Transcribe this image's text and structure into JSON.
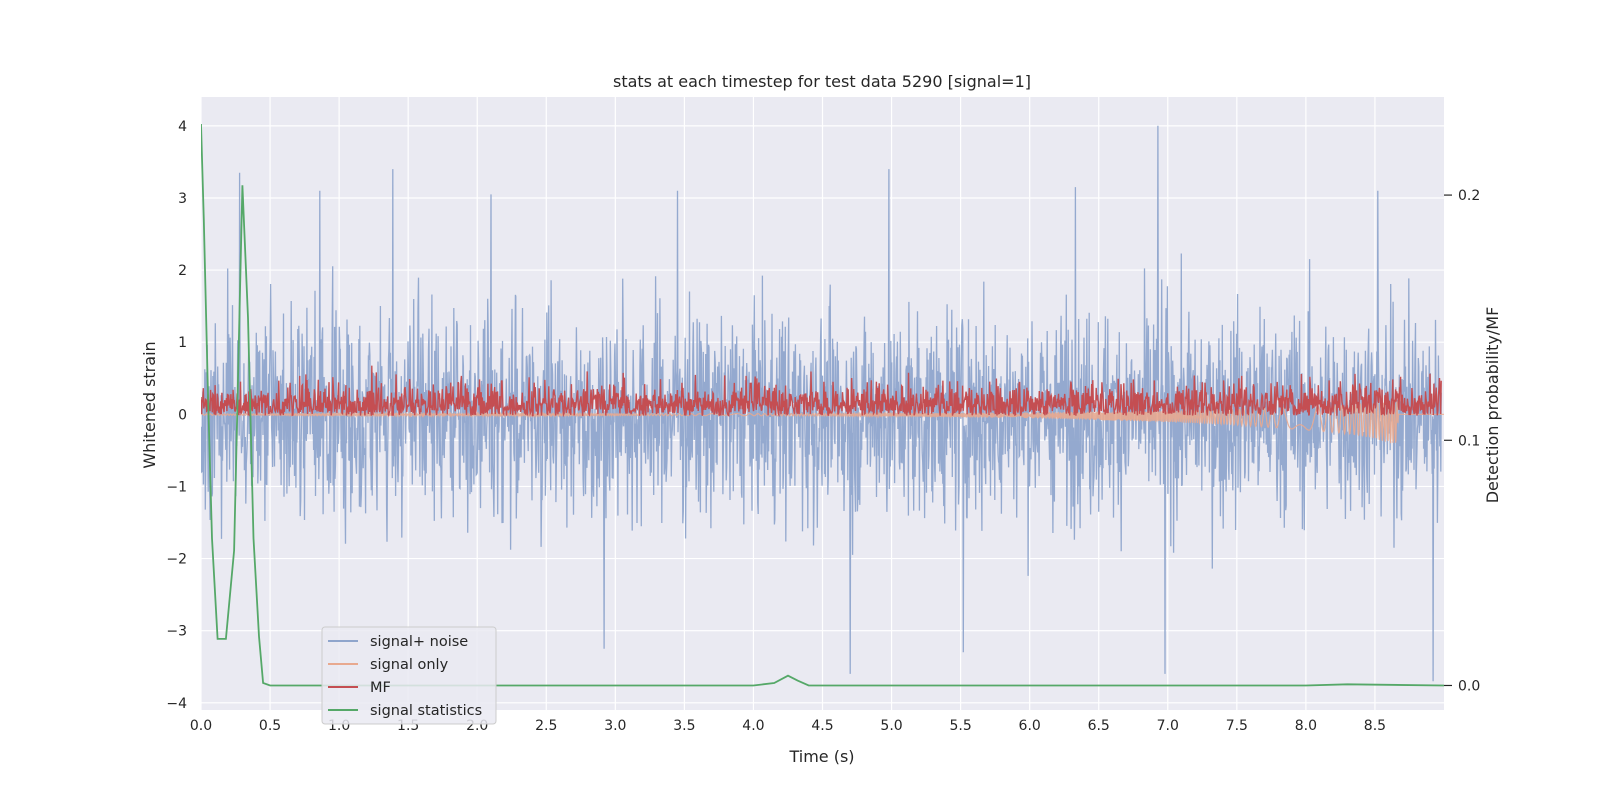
{
  "chart_data": {
    "type": "line",
    "title": "stats at each timestep for test data 5290 [signal=1]",
    "xlabel": "Time (s)",
    "ylabel": "Whitened strain",
    "y2label": "Detection probability/MF",
    "xlim": [
      0.0,
      9.0
    ],
    "ylim": [
      -4.1,
      4.4
    ],
    "y2lim": [
      -0.01,
      0.24
    ],
    "x_ticks": [
      0.0,
      0.5,
      1.0,
      1.5,
      2.0,
      2.5,
      3.0,
      3.5,
      4.0,
      4.5,
      5.0,
      5.5,
      6.0,
      6.5,
      7.0,
      7.5,
      8.0,
      8.5
    ],
    "x_tick_labels": [
      "0.0",
      "0.5",
      "1.0",
      "1.5",
      "2.0",
      "2.5",
      "3.0",
      "3.5",
      "4.0",
      "4.5",
      "5.0",
      "5.5",
      "6.0",
      "6.5",
      "7.0",
      "7.5",
      "8.0",
      "8.5"
    ],
    "y_ticks": [
      4,
      3,
      2,
      1,
      0,
      -1,
      -2,
      -3,
      -4
    ],
    "y_tick_labels": [
      "4",
      "3",
      "2",
      "1",
      "0",
      "−1",
      "−2",
      "−3",
      "−4"
    ],
    "y2_ticks": [
      0.2,
      0.1,
      0.0
    ],
    "y2_tick_labels": [
      "0.2",
      "0.1",
      "0.0"
    ],
    "grid": true,
    "legend_position": "bottom-left",
    "legend": [
      {
        "name": "signal+ noise",
        "color": "#8fa5cc"
      },
      {
        "name": "signal only",
        "color": "#e8a98f"
      },
      {
        "name": "MF",
        "color": "#c44e52"
      },
      {
        "name": "signal statistics",
        "color": "#55a868"
      }
    ],
    "series": [
      {
        "name": "signal+ noise",
        "axis": "left",
        "color": "#8fa5cc",
        "style": "dense noise oscillation",
        "x_range": [
          0.0,
          8.98
        ],
        "y_range": [
          -3.7,
          4.0
        ],
        "peaks": [
          {
            "x": 0.28,
            "y": 3.35
          },
          {
            "x": 0.86,
            "y": 3.1
          },
          {
            "x": 1.39,
            "y": 3.4
          },
          {
            "x": 2.1,
            "y": 3.05
          },
          {
            "x": 3.45,
            "y": 3.1
          },
          {
            "x": 4.98,
            "y": 3.4
          },
          {
            "x": 6.33,
            "y": 3.15
          },
          {
            "x": 6.93,
            "y": 4.0
          },
          {
            "x": 8.52,
            "y": 3.1
          },
          {
            "x": 2.92,
            "y": -3.25
          },
          {
            "x": 4.7,
            "y": -3.6
          },
          {
            "x": 5.52,
            "y": -3.3
          },
          {
            "x": 6.98,
            "y": -3.6
          },
          {
            "x": 8.92,
            "y": -3.7
          }
        ]
      },
      {
        "name": "signal only",
        "axis": "left",
        "color": "#e8a98f",
        "x": [
          0.0,
          4.0,
          5.0,
          6.0,
          6.5,
          7.0,
          7.5,
          8.0,
          8.3,
          8.5,
          8.62,
          8.66,
          8.67,
          9.0
        ],
        "y_amplitude": [
          0.01,
          0.015,
          0.02,
          0.04,
          0.06,
          0.08,
          0.11,
          0.16,
          0.2,
          0.25,
          0.3,
          0.32,
          0.0,
          0.0
        ]
      },
      {
        "name": "MF",
        "axis": "right",
        "color": "#c44e52",
        "style": "dense oscillation",
        "baseline": 0.11,
        "x_range": [
          0.0,
          8.98
        ],
        "y_range": [
          0.11,
          0.14
        ]
      },
      {
        "name": "signal statistics",
        "axis": "right",
        "color": "#55a868",
        "x": [
          0.0,
          0.02,
          0.05,
          0.08,
          0.12,
          0.18,
          0.24,
          0.3,
          0.34,
          0.38,
          0.42,
          0.45,
          0.5,
          1.0,
          2.0,
          3.0,
          4.0,
          4.15,
          4.25,
          4.32,
          4.4,
          4.5,
          5.0,
          6.0,
          7.0,
          8.0,
          8.3,
          9.0
        ],
        "y": [
          0.229,
          0.19,
          0.12,
          0.06,
          0.019,
          0.019,
          0.055,
          0.204,
          0.15,
          0.06,
          0.02,
          0.001,
          0.0,
          0.0,
          0.0,
          0.0,
          0.0,
          0.001,
          0.004,
          0.002,
          0.0,
          0.0,
          0.0,
          0.0,
          0.0,
          0.0,
          0.0005,
          0.0
        ]
      }
    ]
  }
}
